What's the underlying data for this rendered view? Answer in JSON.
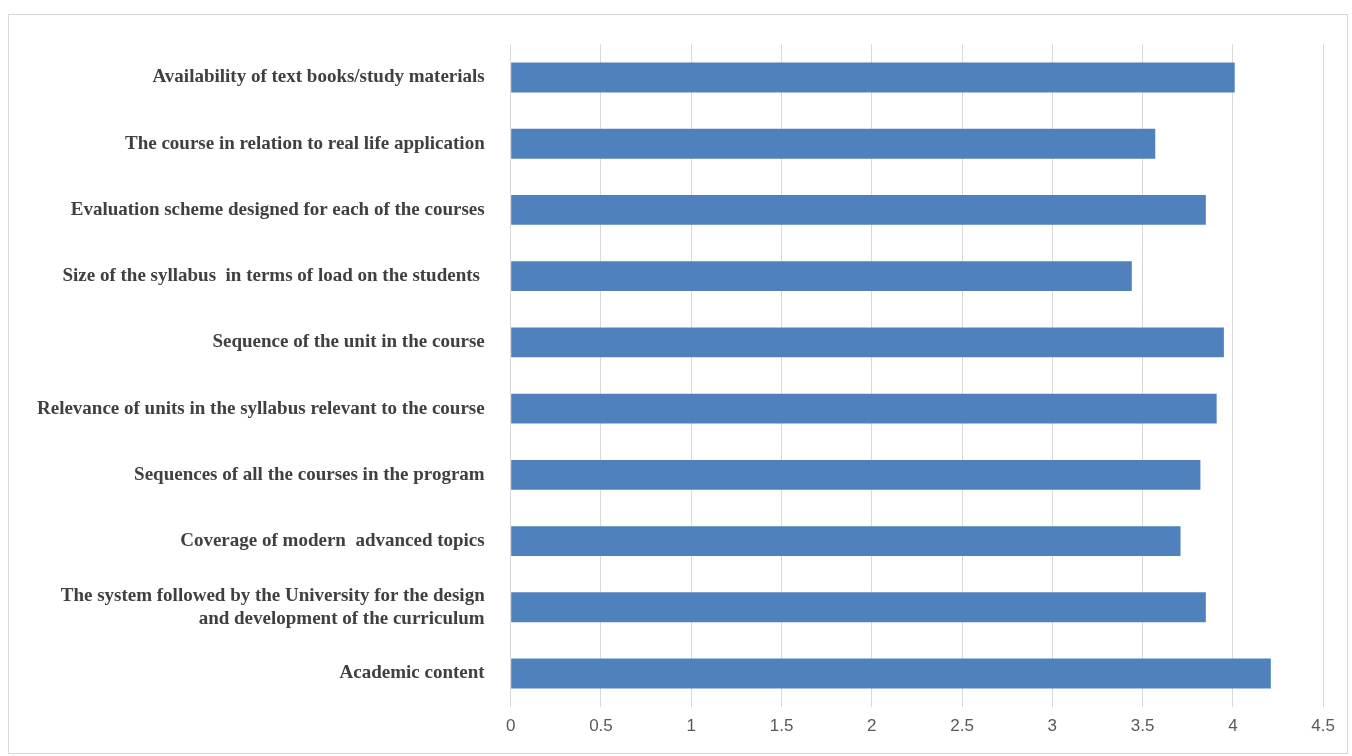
{
  "chart_data": {
    "type": "bar",
    "orientation": "horizontal",
    "categories": [
      "Availability of text books/study materials",
      "The course in relation to real life application",
      "Evaluation scheme designed for each of the courses",
      "Size of the syllabus  in terms of load on the students ",
      "Sequence of the unit in the course",
      "Relevance of units in the syllabus relevant to the course",
      "Sequences of all the courses in the program",
      "Coverage of modern  advanced topics",
      "The system followed by the University for the design and development of the curriculum",
      "Academic content"
    ],
    "values": [
      4.01,
      3.57,
      3.85,
      3.44,
      3.95,
      3.91,
      3.82,
      3.71,
      3.85,
      4.21
    ],
    "color": "#4f81bd",
    "xlim": [
      0,
      4.5
    ],
    "xticks": [
      0,
      0.5,
      1,
      1.5,
      2,
      2.5,
      3,
      3.5,
      4,
      4.5
    ],
    "grid": "x",
    "legend": false
  }
}
